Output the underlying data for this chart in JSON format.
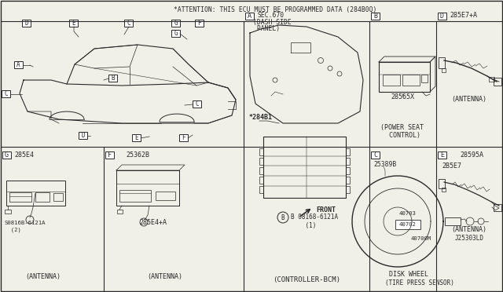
{
  "bg_color": "#f0f0e8",
  "line_color": "#2a2a2a",
  "border_color": "#2a2a2a",
  "attention_text": "*ATTENTION: THIS ECU MUST BE PROGRAMMED DATA (284B0Q)",
  "sections": {
    "A_text1": "SEC.670",
    "A_text2": "(DASH SIDE",
    "A_text3": " PANEL)",
    "A_ref": "*284B1",
    "A_front": "FRONT",
    "A_bottom": "(CONTROLLER-BCM)",
    "A_callout": "B 08168-6121A\n    (1)",
    "B_label": "B",
    "B_part": "28565X",
    "B_desc1": "(POWER SEAT",
    "B_desc2": " CONTROL)",
    "C_label": "C",
    "C_part": "25389B",
    "C_desc1": "DISK WHEEL",
    "C_desc2": "(TIRE PRESS SENSOR)",
    "C_p1": "40703",
    "C_p2": "40702",
    "C_p3": "40700M",
    "D_label": "D",
    "D_part": "285E7+A",
    "D_desc": "(ANTENNA)",
    "E_label": "E",
    "E_part1": "28595A",
    "E_part2": "2B5E7",
    "E_desc": "(ANTENNA)",
    "E_ref": "J25303LD",
    "F_label": "F",
    "F_part1": "25362B",
    "F_part2": "285E4+A",
    "F_desc": "(ANTENNA)",
    "G_label": "G",
    "G_part1": "285E4",
    "G_part2": "S0816B-6121A",
    "G_part2b": "  (2)",
    "G_desc": "(ANTENNA)"
  }
}
